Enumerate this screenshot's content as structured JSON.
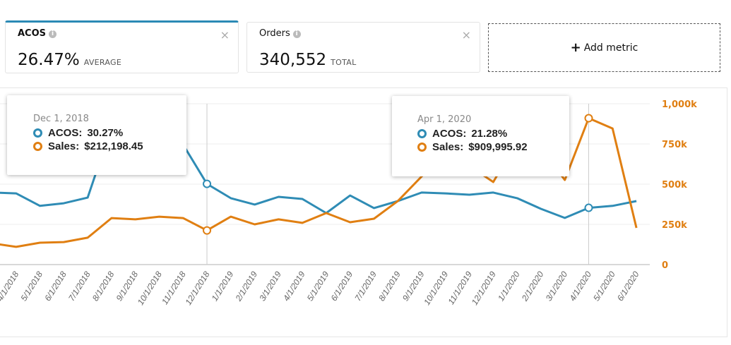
{
  "metrics": [
    {
      "title": "ACOS",
      "value": "26.47%",
      "label": "AVERAGE",
      "close": "×"
    },
    {
      "title": "Orders",
      "value": "340,552",
      "label": "TOTAL",
      "close": "×"
    }
  ],
  "add_metric": {
    "icon": "+",
    "label": "Add metric"
  },
  "colors": {
    "acos": "#2f8cb5",
    "sales": "#e07f12"
  },
  "tooltips": [
    {
      "date": "Dec 1, 2018",
      "acos_label": "ACOS:",
      "acos": "30.27%",
      "sales_label": "Sales:",
      "sales": "$212,198.45"
    },
    {
      "date": "Apr 1, 2020",
      "acos_label": "ACOS:",
      "acos": "21.28%",
      "sales_label": "Sales:",
      "sales": "$909,995.92"
    }
  ],
  "chart_data": {
    "type": "line",
    "categories": [
      "3/1/2018",
      "4/1/2018",
      "5/1/2018",
      "6/1/2018",
      "7/1/2018",
      "8/1/2018",
      "9/1/2018",
      "10/1/2018",
      "11/1/2018",
      "12/1/2018",
      "1/1/2019",
      "2/1/2019",
      "3/1/2019",
      "4/1/2019",
      "5/1/2019",
      "6/1/2019",
      "7/1/2019",
      "8/1/2019",
      "9/1/2019",
      "10/1/2019",
      "11/1/2019",
      "12/1/2019",
      "1/1/2020",
      "2/1/2020",
      "3/1/2020",
      "4/1/2020",
      "5/1/2020",
      "6/1/2020"
    ],
    "series": [
      {
        "name": "ACOS",
        "axis": "left",
        "unit": "%",
        "values": [
          27.0,
          26.7,
          22.0,
          23.0,
          25.1,
          51.6,
          55.6,
          52.9,
          45.0,
          30.27,
          24.9,
          22.5,
          25.4,
          24.6,
          19.3,
          25.9,
          21.2,
          23.8,
          27.0,
          26.7,
          26.2,
          27.0,
          24.9,
          20.9,
          17.5,
          21.28,
          22.0,
          23.8
        ]
      },
      {
        "name": "Sales",
        "axis": "right",
        "unit": "k$",
        "values": [
          132,
          110,
          136,
          140,
          167,
          289,
          281,
          298,
          289,
          212.2,
          298,
          250,
          281,
          259,
          320,
          263,
          285,
          395,
          548,
          702,
          614,
          513,
          768,
          724,
          526,
          910.0,
          846,
          228
        ]
      }
    ],
    "right_axis": {
      "ticks": [
        "0",
        "250k",
        "500k",
        "750k",
        "1,000k"
      ],
      "range": [
        0,
        1000
      ]
    },
    "left_axis_range_percent": [
      0,
      60
    ],
    "highlighted": [
      "12/1/2018",
      "4/1/2020"
    ],
    "grid": true
  }
}
